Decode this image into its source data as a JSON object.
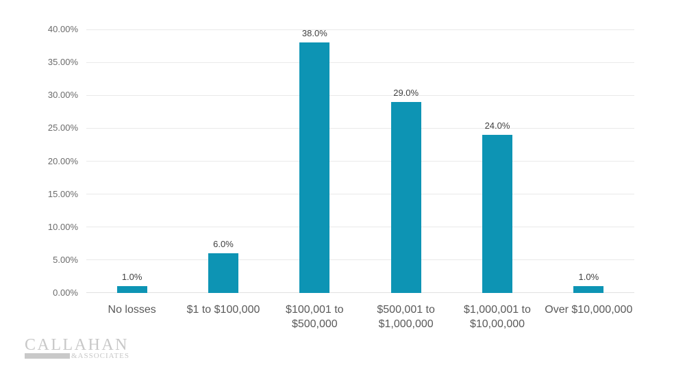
{
  "chart_data": {
    "type": "bar",
    "title": "",
    "xlabel": "",
    "ylabel": "",
    "categories": [
      "No losses",
      "$1 to $100,000",
      "$100,001 to\n$500,000",
      "$500,001 to\n$1,000,000",
      "$1,000,001 to\n$10,00,000",
      "Over $10,000,000"
    ],
    "values": [
      1.0,
      6.0,
      38.0,
      29.0,
      24.0,
      1.0
    ],
    "data_labels": [
      "1.0%",
      "6.0%",
      "38.0%",
      "29.0%",
      "24.0%",
      "1.0%"
    ],
    "y_ticks": [
      "0.00%",
      "5.00%",
      "10.00%",
      "15.00%",
      "20.00%",
      "25.00%",
      "30.00%",
      "35.00%",
      "40.00%"
    ],
    "ylim": [
      0,
      40
    ],
    "grid": true,
    "legend_position": "none",
    "bar_color": "#0d94b4"
  },
  "colors": {
    "background": "#ffffff",
    "bar": "#0d94b4",
    "gridline": "#e9e9e9",
    "axis_line": "#e0e0e0",
    "y_tick_text": "#6b6b6b",
    "x_label_text": "#595959",
    "value_label_text": "#3f3f3f",
    "logo_gray": "#c8c8c8"
  },
  "logo": {
    "name": "CALLAHAN",
    "sub": "&ASSOCIATES"
  }
}
